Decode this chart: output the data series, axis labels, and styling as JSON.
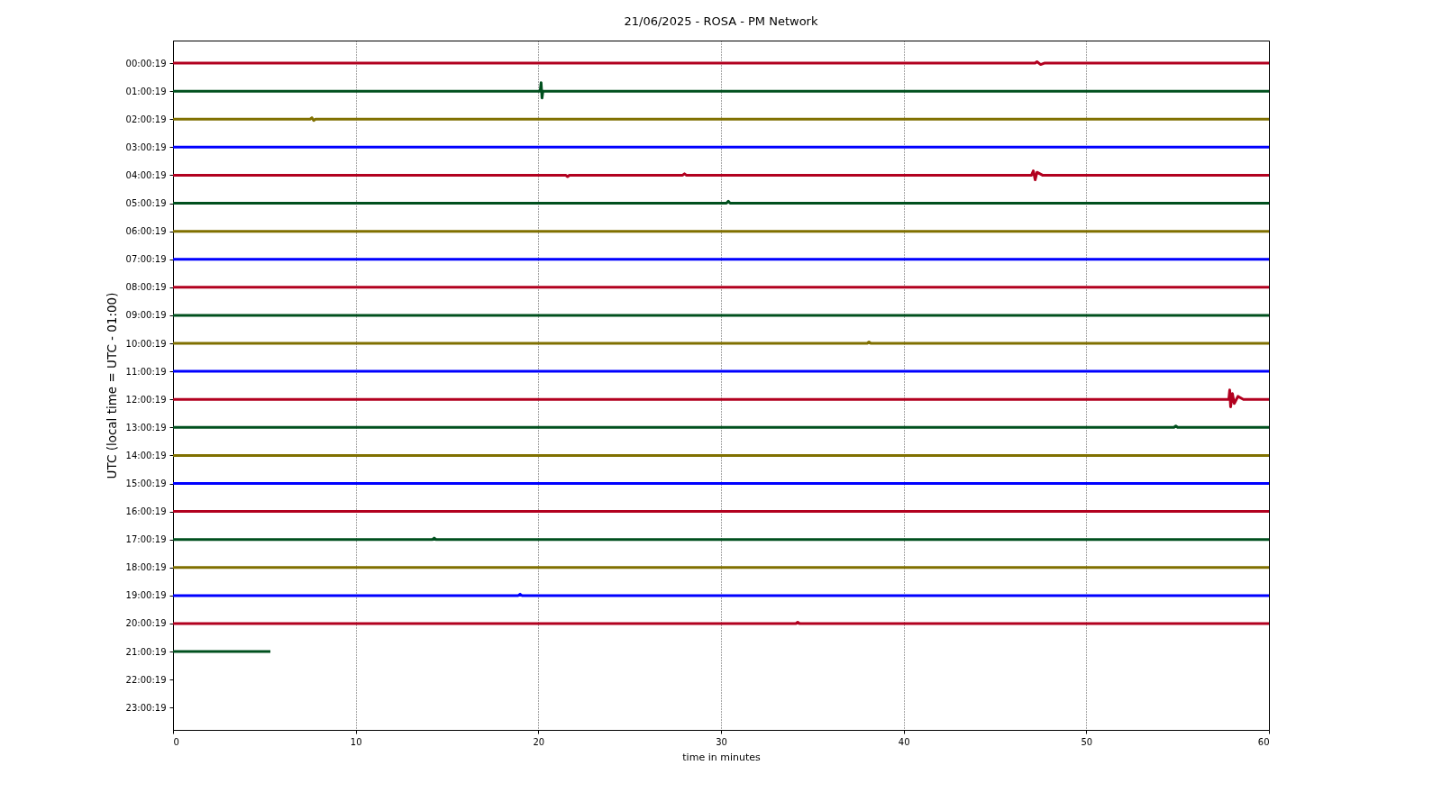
{
  "chart_data": {
    "type": "line",
    "title": "21/06/2025 - ROSA - PM Network",
    "xlabel": "time in minutes",
    "ylabel": "UTC (local time = UTC - 01:00)",
    "xlim": [
      0,
      60
    ],
    "xticks": [
      0,
      10,
      20,
      30,
      40,
      50,
      60
    ],
    "ylim": [
      23.8,
      -0.8
    ],
    "yticks": [
      {
        "value": 0.0053,
        "label": "00:00:19"
      },
      {
        "value": 1.0053,
        "label": "01:00:19"
      },
      {
        "value": 2.0053,
        "label": "02:00:19"
      },
      {
        "value": 3.0053,
        "label": "03:00:19"
      },
      {
        "value": 4.0053,
        "label": "04:00:19"
      },
      {
        "value": 5.0053,
        "label": "05:00:19"
      },
      {
        "value": 6.0053,
        "label": "06:00:19"
      },
      {
        "value": 7.0053,
        "label": "07:00:19"
      },
      {
        "value": 8.0053,
        "label": "08:00:19"
      },
      {
        "value": 9.0053,
        "label": "09:00:19"
      },
      {
        "value": 10.0053,
        "label": "10:00:19"
      },
      {
        "value": 11.0053,
        "label": "11:00:19"
      },
      {
        "value": 12.0053,
        "label": "12:00:19"
      },
      {
        "value": 13.0053,
        "label": "13:00:19"
      },
      {
        "value": 14.0053,
        "label": "14:00:19"
      },
      {
        "value": 15.0053,
        "label": "15:00:19"
      },
      {
        "value": 16.0053,
        "label": "16:00:19"
      },
      {
        "value": 17.0053,
        "label": "17:00:19"
      },
      {
        "value": 18.0053,
        "label": "18:00:19"
      },
      {
        "value": 19.0053,
        "label": "19:00:19"
      },
      {
        "value": 20.0053,
        "label": "20:00:19"
      },
      {
        "value": 21.0053,
        "label": "21:00:19"
      },
      {
        "value": 22.0053,
        "label": "22:00:19"
      },
      {
        "value": 23.0053,
        "label": "23:00:19"
      }
    ],
    "grid": "x",
    "series": [
      {
        "color": "#b2001f",
        "x": [
          0,
          47.2,
          47.3,
          47.5,
          47.7,
          60
        ],
        "values": [
          0.0053,
          0.0053,
          -0.045,
          0.055,
          0.0053,
          0.0053
        ]
      },
      {
        "color": "#00501e",
        "x": [
          0,
          20.1,
          20.15,
          20.2,
          20.25,
          60
        ],
        "values": [
          1.0053,
          1.0053,
          0.7,
          1.25,
          1.0053,
          1.0053
        ]
      },
      {
        "color": "#807000",
        "x": [
          0,
          7.5,
          7.6,
          7.7,
          7.8,
          60
        ],
        "values": [
          2.0053,
          2.0053,
          1.955,
          2.055,
          2.0053,
          2.0053
        ]
      },
      {
        "color": "#0000ff",
        "x": [
          0,
          60
        ],
        "values": [
          3.0053,
          3.0053
        ]
      },
      {
        "color": "#b2001f",
        "x": [
          0,
          21.5,
          21.6,
          21.7,
          27.9,
          28.0,
          28.1,
          47.0,
          47.1,
          47.2,
          47.3,
          47.6,
          60
        ],
        "values": [
          4.0053,
          4.0053,
          4.055,
          4.0053,
          4.0053,
          3.955,
          4.0053,
          4.0053,
          3.85,
          4.17,
          3.9,
          4.0053,
          4.0053
        ]
      },
      {
        "color": "#00501e",
        "x": [
          0,
          30.3,
          30.4,
          30.5,
          60
        ],
        "values": [
          5.0053,
          5.0053,
          4.935,
          5.0053,
          5.0053
        ]
      },
      {
        "color": "#807000",
        "x": [
          0,
          60
        ],
        "values": [
          6.0053,
          6.0053
        ]
      },
      {
        "color": "#0000ff",
        "x": [
          0,
          60
        ],
        "values": [
          7.0053,
          7.0053
        ]
      },
      {
        "color": "#b2001f",
        "x": [
          0,
          60
        ],
        "values": [
          8.0053,
          8.0053
        ]
      },
      {
        "color": "#00501e",
        "x": [
          0,
          60
        ],
        "values": [
          9.0053,
          9.0053
        ]
      },
      {
        "color": "#807000",
        "x": [
          0,
          38.0,
          38.1,
          38.2,
          60
        ],
        "values": [
          10.0053,
          10.0053,
          9.955,
          10.0053,
          10.0053
        ]
      },
      {
        "color": "#0000ff",
        "x": [
          0,
          60
        ],
        "values": [
          11.0053,
          11.0053
        ]
      },
      {
        "color": "#b2001f",
        "x": [
          0,
          57.8,
          57.85,
          57.9,
          58.0,
          58.1,
          58.3,
          58.6,
          60
        ],
        "values": [
          12.0053,
          12.0053,
          11.67,
          12.27,
          11.8,
          12.15,
          11.9,
          12.0053,
          12.0053
        ]
      },
      {
        "color": "#00501e",
        "x": [
          0,
          54.8,
          54.9,
          55.0,
          60
        ],
        "values": [
          13.0053,
          13.0053,
          12.955,
          13.0053,
          13.0053
        ]
      },
      {
        "color": "#807000",
        "x": [
          0,
          60
        ],
        "values": [
          14.0053,
          14.0053
        ]
      },
      {
        "color": "#0000ff",
        "x": [
          0,
          60
        ],
        "values": [
          15.0053,
          15.0053
        ]
      },
      {
        "color": "#b2001f",
        "x": [
          0,
          60
        ],
        "values": [
          16.0053,
          16.0053
        ]
      },
      {
        "color": "#00501e",
        "x": [
          0,
          14.2,
          14.3,
          14.4,
          60
        ],
        "values": [
          17.0053,
          17.0053,
          16.955,
          17.0053,
          17.0053
        ]
      },
      {
        "color": "#807000",
        "x": [
          0,
          60
        ],
        "values": [
          18.0053,
          18.0053
        ]
      },
      {
        "color": "#0000ff",
        "x": [
          0,
          18.9,
          19.0,
          19.1,
          60
        ],
        "values": [
          19.0053,
          19.0053,
          18.955,
          19.0053,
          19.0053
        ]
      },
      {
        "color": "#b2001f",
        "x": [
          0,
          34.1,
          34.2,
          34.3,
          60
        ],
        "values": [
          20.0053,
          20.0053,
          19.955,
          20.0053,
          20.0053
        ]
      },
      {
        "color": "#00501e",
        "x": [
          0,
          5.33
        ],
        "values": [
          21.0053,
          21.0053
        ]
      }
    ]
  }
}
